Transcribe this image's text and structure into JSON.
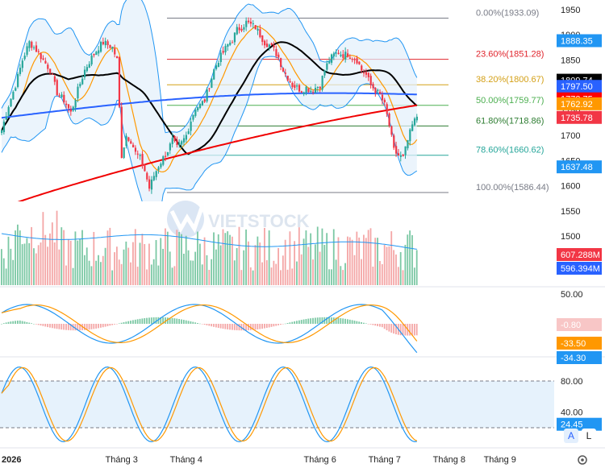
{
  "chart_data": {
    "type": "candlestick",
    "watermark": "VIETSTOCK",
    "x_axis": {
      "year_label": "2026",
      "months": [
        {
          "label": "Tháng 3",
          "day": 52
        },
        {
          "label": "Tháng 4",
          "day": 80
        },
        {
          "label": "Tháng 6",
          "day": 138
        },
        {
          "label": "Tháng 7",
          "day": 166
        },
        {
          "label": "Tháng 8",
          "day": 194
        },
        {
          "label": "Tháng 9",
          "day": 216
        }
      ]
    },
    "price_panel": {
      "ylim": [
        1550,
        1960
      ],
      "ticks": [
        1950,
        1900,
        1850,
        1800,
        1750,
        1700,
        1650,
        1600,
        1550,
        1500
      ],
      "fib_levels": [
        {
          "label": "0.00%(1933.09)",
          "value": 1933.09,
          "color": "#787b86"
        },
        {
          "label": "23.60%(1851.28)",
          "value": 1851.28,
          "color": "#e0242c"
        },
        {
          "label": "38.20%(1800.67)",
          "value": 1800.67,
          "color": "#d4a017"
        },
        {
          "label": "50.00%(1759.77)",
          "value": 1759.77,
          "color": "#4caf50"
        },
        {
          "label": "61.80%(1718.86)",
          "value": 1718.86,
          "color": "#2e7d32"
        },
        {
          "label": "78.60%(1660.62)",
          "value": 1660.62,
          "color": "#26a69a"
        },
        {
          "label": "100.00%(1586.44)",
          "value": 1586.44,
          "color": "#787b86"
        }
      ],
      "price_tags": [
        {
          "text": "1888.35",
          "value": 1888.35,
          "color": "#2196f3"
        },
        {
          "text": "1809.74",
          "value": 1809.74,
          "color": "#000000"
        },
        {
          "text": "1797.50",
          "value": 1797.5,
          "color": "#2962ff"
        },
        {
          "text": "1772.75",
          "value": 1772.75,
          "color": "#ff0000"
        },
        {
          "text": "1762.92",
          "value": 1762.92,
          "color": "#ff9800"
        },
        {
          "text": "1735.78",
          "value": 1735.78,
          "color": "#f23645"
        },
        {
          "text": "1637.48",
          "value": 1637.48,
          "color": "#2196f3"
        }
      ],
      "anchors": [
        [
          0,
          1710
        ],
        [
          3,
          1760
        ],
        [
          6,
          1800
        ],
        [
          9,
          1850
        ],
        [
          12,
          1885
        ],
        [
          15,
          1870
        ],
        [
          18,
          1850
        ],
        [
          21,
          1830
        ],
        [
          24,
          1785
        ],
        [
          27,
          1770
        ],
        [
          30,
          1745
        ],
        [
          33,
          1790
        ],
        [
          36,
          1830
        ],
        [
          39,
          1855
        ],
        [
          42,
          1875
        ],
        [
          44,
          1885
        ],
        [
          46,
          1880
        ],
        [
          48,
          1875
        ],
        [
          50,
          1850
        ],
        [
          52,
          1660
        ],
        [
          54,
          1700
        ],
        [
          56,
          1690
        ],
        [
          58,
          1665
        ],
        [
          60,
          1655
        ],
        [
          62,
          1630
        ],
        [
          64,
          1595
        ],
        [
          66,
          1620
        ],
        [
          68,
          1640
        ],
        [
          70,
          1655
        ],
        [
          72,
          1670
        ],
        [
          74,
          1690
        ],
        [
          76,
          1675
        ],
        [
          78,
          1685
        ],
        [
          80,
          1700
        ],
        [
          82,
          1730
        ],
        [
          84,
          1755
        ],
        [
          86,
          1760
        ],
        [
          88,
          1770
        ],
        [
          90,
          1800
        ],
        [
          92,
          1830
        ],
        [
          94,
          1850
        ],
        [
          96,
          1865
        ],
        [
          98,
          1880
        ],
        [
          100,
          1890
        ],
        [
          102,
          1910
        ],
        [
          104,
          1915
        ],
        [
          106,
          1925
        ],
        [
          108,
          1920
        ],
        [
          110,
          1915
        ],
        [
          112,
          1900
        ],
        [
          114,
          1885
        ],
        [
          116,
          1880
        ],
        [
          118,
          1870
        ],
        [
          120,
          1855
        ],
        [
          122,
          1830
        ],
        [
          124,
          1815
        ],
        [
          126,
          1800
        ],
        [
          128,
          1795
        ],
        [
          130,
          1790
        ],
        [
          132,
          1795
        ],
        [
          134,
          1790
        ],
        [
          136,
          1795
        ],
        [
          138,
          1800
        ],
        [
          140,
          1830
        ],
        [
          142,
          1850
        ],
        [
          144,
          1860
        ],
        [
          146,
          1865
        ],
        [
          148,
          1860
        ],
        [
          150,
          1862
        ],
        [
          152,
          1855
        ],
        [
          154,
          1850
        ],
        [
          156,
          1830
        ],
        [
          158,
          1820
        ],
        [
          160,
          1800
        ],
        [
          162,
          1790
        ],
        [
          164,
          1780
        ],
        [
          166,
          1760
        ],
        [
          168,
          1720
        ],
        [
          170,
          1670
        ],
        [
          172,
          1660
        ],
        [
          174,
          1655
        ],
        [
          176,
          1690
        ],
        [
          178,
          1720
        ],
        [
          180,
          1738
        ]
      ]
    },
    "volume_panel": {
      "values": [
        "607.288M",
        "596.394M"
      ],
      "tag_colors": [
        "#f23645",
        "#2962ff"
      ]
    },
    "macd_panel": {
      "ylim": [
        -45,
        55
      ],
      "ticks": [
        50.0
      ],
      "tick_labels": [
        "50.00"
      ],
      "values": [
        {
          "text": "-0.80",
          "value": -0.8,
          "color": "#f8c6c6",
          "text_color": "#222222"
        },
        {
          "text": "-33.50",
          "value": -33.5,
          "color": "#ff9800",
          "text_color": "#ffffff"
        },
        {
          "text": "-34.30",
          "value": -34.3,
          "color": "#2196f3",
          "text_color": "#ffffff"
        }
      ]
    },
    "stoch_panel": {
      "ylim": [
        0,
        100
      ],
      "ticks": [
        "80.00",
        "40.00"
      ],
      "tick_values": [
        80,
        40
      ],
      "bands": [
        80,
        20
      ],
      "values": [
        {
          "text": "24.45",
          "value": 24.45,
          "color": "#2196f3"
        }
      ]
    },
    "scale_buttons": [
      {
        "label": "A",
        "active": true
      },
      {
        "label": "L",
        "active": false
      }
    ],
    "settings_icon": "gear-icon"
  }
}
